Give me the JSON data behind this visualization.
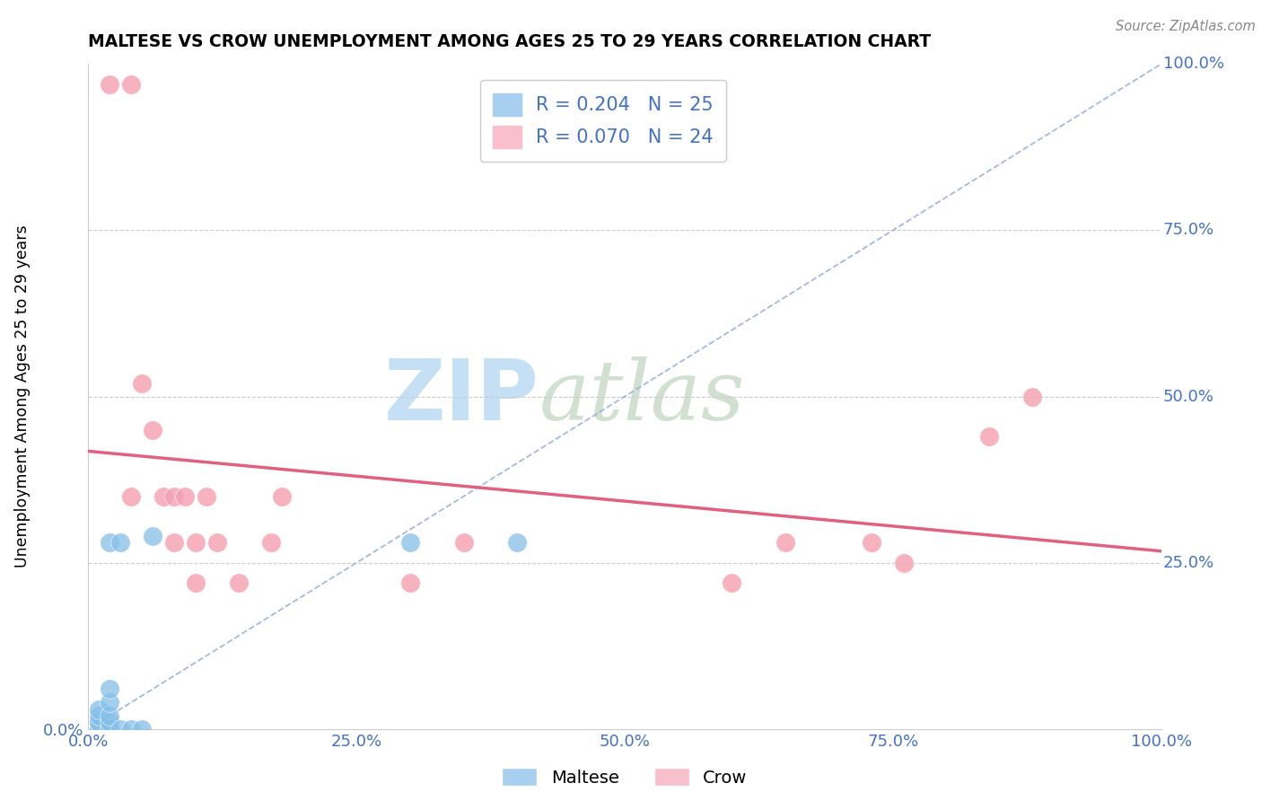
{
  "title": "MALTESE VS CROW UNEMPLOYMENT AMONG AGES 25 TO 29 YEARS CORRELATION CHART",
  "source": "Source: ZipAtlas.com",
  "ylabel": "Unemployment Among Ages 25 to 29 years",
  "xlim": [
    0,
    1.0
  ],
  "ylim": [
    0,
    1.0
  ],
  "xtick_labels": [
    "0.0%",
    "25.0%",
    "50.0%",
    "75.0%",
    "100.0%"
  ],
  "xtick_vals": [
    0,
    0.25,
    0.5,
    0.75,
    1.0
  ],
  "ytick_labels_left": [
    "0.0%"
  ],
  "ytick_vals_left": [
    0
  ],
  "ytick_labels_right": [
    "100.0%",
    "75.0%",
    "50.0%",
    "25.0%"
  ],
  "ytick_vals_right": [
    1.0,
    0.75,
    0.5,
    0.25
  ],
  "maltese_dot_color": "#85bfe8",
  "crow_dot_color": "#f4a0b0",
  "maltese_R": 0.204,
  "maltese_N": 25,
  "crow_R": 0.07,
  "crow_N": 24,
  "legend_color_maltese": "#a8cff0",
  "legend_color_crow": "#f8c0cc",
  "crow_line_color": "#e06080",
  "diagonal_color": "#99aadd",
  "maltese_x": [
    0.01,
    0.01,
    0.01,
    0.01,
    0.01,
    0.01,
    0.01,
    0.01,
    0.01,
    0.01,
    0.01,
    0.02,
    0.02,
    0.02,
    0.02,
    0.02,
    0.02,
    0.02,
    0.03,
    0.03,
    0.04,
    0.05,
    0.06,
    0.3,
    0.4
  ],
  "maltese_y": [
    0.0,
    0.0,
    0.0,
    0.0,
    0.0,
    0.0,
    0.0,
    0.01,
    0.01,
    0.02,
    0.03,
    0.0,
    0.0,
    0.01,
    0.02,
    0.04,
    0.06,
    0.28,
    0.0,
    0.28,
    0.0,
    0.0,
    0.29,
    0.28,
    0.28
  ],
  "crow_x": [
    0.02,
    0.04,
    0.04,
    0.05,
    0.06,
    0.07,
    0.08,
    0.08,
    0.09,
    0.1,
    0.1,
    0.11,
    0.12,
    0.14,
    0.17,
    0.18,
    0.3,
    0.35,
    0.6,
    0.65,
    0.73,
    0.76,
    0.84,
    0.88
  ],
  "crow_y": [
    0.97,
    0.97,
    0.35,
    0.52,
    0.45,
    0.35,
    0.35,
    0.28,
    0.35,
    0.22,
    0.28,
    0.35,
    0.28,
    0.22,
    0.28,
    0.35,
    0.22,
    0.28,
    0.22,
    0.28,
    0.28,
    0.25,
    0.44,
    0.5
  ]
}
